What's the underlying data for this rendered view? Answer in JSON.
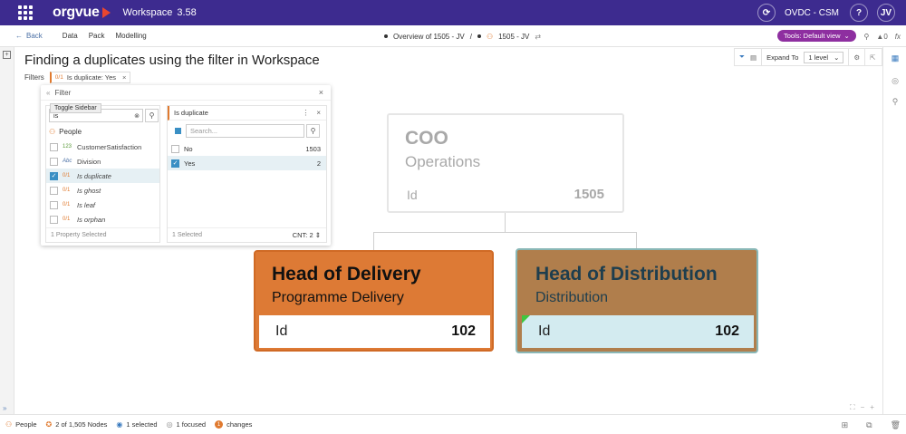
{
  "topbar": {
    "brand": "orgvue",
    "workspace_label": "Workspace",
    "version": "3.58",
    "org_name": "OVDC - CSM",
    "help": "?",
    "user_initials": "JV"
  },
  "navbar": {
    "back": "Back",
    "menu": [
      "Data",
      "Pack",
      "Modelling"
    ],
    "breadcrumb_1": "Overview of 1505 - JV",
    "breadcrumb_sep": "/",
    "breadcrumb_2": "1505 - JV",
    "tools": "Tools: Default view",
    "alerts": "0",
    "fx": "fx"
  },
  "page": {
    "title": "Finding a duplicates using the filter in Workspace",
    "filters_label": "Filters",
    "chip_type": "0/1",
    "chip_label": "Is duplicate: Yes",
    "chip_close": "×"
  },
  "expand_bar": {
    "label": "Expand To",
    "level": "1 level"
  },
  "filter_panel": {
    "title": "Filter",
    "tooltip": "Toggle Sidebar",
    "search_value": "is",
    "group": "People",
    "properties": [
      {
        "type": "123",
        "label": "CustomerSatisfaction",
        "checked": false
      },
      {
        "type": "Abc",
        "label": "Division",
        "checked": false
      },
      {
        "type": "0/1",
        "label": "Is duplicate",
        "checked": true
      },
      {
        "type": "0/1",
        "label": "Is ghost",
        "checked": false
      },
      {
        "type": "0/1",
        "label": "Is leaf",
        "checked": false
      },
      {
        "type": "0/1",
        "label": "Is orphan",
        "checked": false
      }
    ],
    "left_footer": "1 Property Selected",
    "right_header": "Is duplicate",
    "right_search_placeholder": "Search...",
    "values": [
      {
        "label": "No",
        "count": "1503",
        "checked": false
      },
      {
        "label": "Yes",
        "count": "2",
        "checked": true
      }
    ],
    "right_footer": "1 Selected",
    "cnt": "CNT: 2"
  },
  "chart": {
    "root": {
      "name": "COO",
      "dept": "Operations",
      "id_label": "Id",
      "id_value": "1505"
    },
    "child_1": {
      "name": "Head of Delivery",
      "dept": "Programme Delivery",
      "id_label": "Id",
      "id_value": "102"
    },
    "child_2": {
      "name": "Head of Distribution",
      "dept": "Distribution",
      "id_label": "Id",
      "id_value": "102"
    }
  },
  "statusbar": {
    "dataset": "People",
    "nodes": "2 of 1,505 Nodes",
    "selected": "1 selected",
    "focused": "1 focused",
    "changes_count": "1",
    "changes": "changes"
  },
  "colors": {
    "topbar": "#3d2b8f",
    "accent_orange": "#e07a2f",
    "tools_pill": "#8e2fa0",
    "delivery_node": "#dd7a35",
    "distribution_node": "#b07e4c",
    "selection": "#3a8fc4"
  }
}
